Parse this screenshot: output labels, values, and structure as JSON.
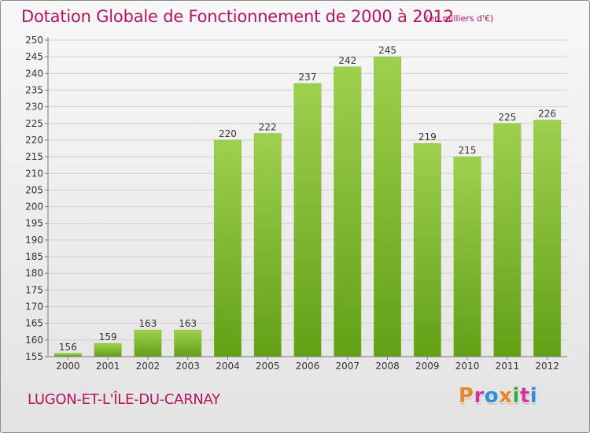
{
  "header": {
    "title": "Dotation Globale de Fonctionnement de 2000 à 2012",
    "subtitle": "(en milliers d'€)"
  },
  "footer": {
    "commune": "LUGON-ET-L'ÎLE-DU-CARNAY",
    "logo_text": "Proxiti",
    "logo_colors": [
      "#e8862a",
      "#d4329a",
      "#2a8fd4",
      "#e8862a",
      "#3aa83a",
      "#d4329a",
      "#2a8fd4"
    ]
  },
  "colors": {
    "bar_top": "#9ed04e",
    "bar_bottom": "#62a016",
    "grid": "#cfcfcf",
    "axis": "#7a7a7a",
    "text": "#333333",
    "accent": "#b5145f"
  },
  "chart_data": {
    "type": "bar",
    "categories": [
      "2000",
      "2001",
      "2002",
      "2003",
      "2004",
      "2005",
      "2006",
      "2007",
      "2008",
      "2009",
      "2010",
      "2011",
      "2012"
    ],
    "values": [
      156,
      159,
      163,
      163,
      220,
      222,
      237,
      242,
      245,
      219,
      215,
      225,
      226
    ],
    "ylim": [
      155,
      250
    ],
    "yticks": [
      155,
      160,
      165,
      170,
      175,
      180,
      185,
      190,
      195,
      200,
      205,
      210,
      215,
      220,
      225,
      230,
      235,
      240,
      245,
      250
    ],
    "grid": true,
    "xlabel": "",
    "ylabel": ""
  }
}
